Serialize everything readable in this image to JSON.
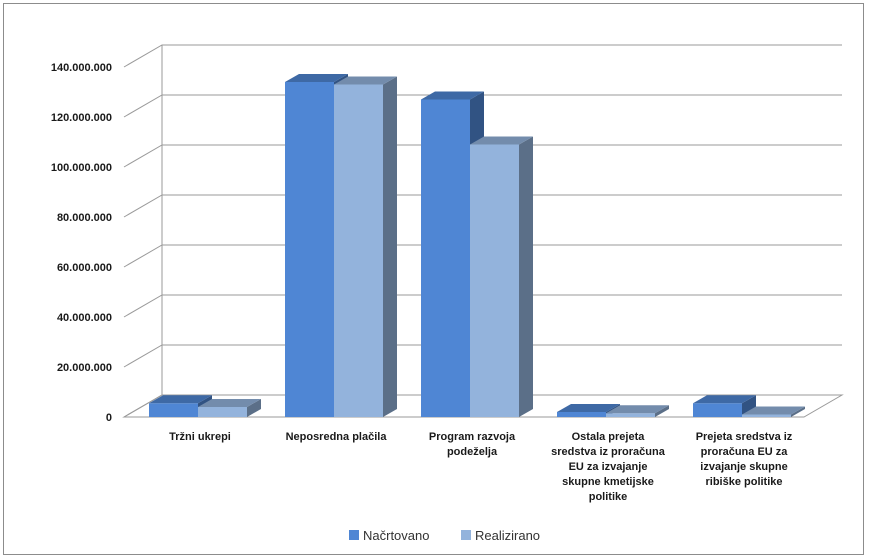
{
  "chart_data": {
    "type": "bar",
    "style": "3d-clustered",
    "categories": [
      "Tržni ukrepi",
      "Neposredna plačila",
      "Program razvoja podeželja",
      "Ostala prejeta sredstva iz proračuna EU za izvajanje skupne kmetijske politike",
      "Prejeta sredstva iz proračuna EU za izvajanje skupne ribiške politike"
    ],
    "category_lines": [
      [
        "Tržni ukrepi"
      ],
      [
        "Neposredna plačila"
      ],
      [
        "Program razvoja",
        "podeželja"
      ],
      [
        "Ostala prejeta",
        "sredstva iz proračuna",
        "EU za izvajanje",
        "skupne kmetijske",
        "politike"
      ],
      [
        "Prejeta sredstva iz",
        "proračuna EU za",
        "izvajanje skupne",
        "ribiške politike"
      ]
    ],
    "series": [
      {
        "name": "Načrtovano",
        "color": "#4f86d4",
        "values": [
          5500000,
          134000000,
          127000000,
          2000000,
          5500000
        ]
      },
      {
        "name": "Realizirano",
        "color": "#93b3dc",
        "values": [
          4000000,
          133000000,
          109000000,
          1500000,
          1000000
        ]
      }
    ],
    "y_ticks": [
      "0",
      "20.000.000",
      "40.000.000",
      "60.000.000",
      "80.000.000",
      "100.000.000",
      "120.000.000",
      "140.000.000"
    ],
    "ylim": [
      0,
      140000000
    ],
    "title": "",
    "xlabel": "",
    "ylabel": "",
    "grid": true,
    "legend_position": "bottom"
  }
}
